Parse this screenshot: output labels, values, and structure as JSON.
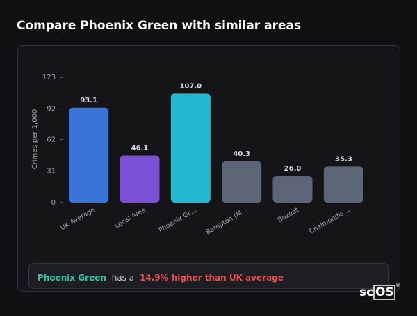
{
  "page_title": "Compare Phoenix Green with similar areas",
  "chart_data": {
    "type": "bar",
    "y_label": "Crimes per 1,000",
    "categories": [
      "UK Average",
      "Local Area",
      "Phoenix Gr…",
      "Bampton (M…",
      "Bozeat",
      "Chelmondis…"
    ],
    "values": [
      93.1,
      46.1,
      107.0,
      40.3,
      26.0,
      35.3
    ],
    "value_labels": [
      "93.1",
      "46.1",
      "107.0",
      "40.3",
      "26.0",
      "35.3"
    ],
    "colors": [
      "#3b74d9",
      "#7b4fd6",
      "#22b8cf",
      "#5d6678",
      "#5d6678",
      "#5d6678"
    ],
    "ylim": [
      0,
      123
    ],
    "yticks": [
      0,
      31,
      62,
      92,
      123
    ],
    "grid": false
  },
  "note": {
    "area": "Phoenix Green",
    "middle": "has a",
    "highlight": "14.9% higher than UK average"
  },
  "logo": {
    "prefix": "sc",
    "boxed": "OS",
    "mark": "®"
  }
}
